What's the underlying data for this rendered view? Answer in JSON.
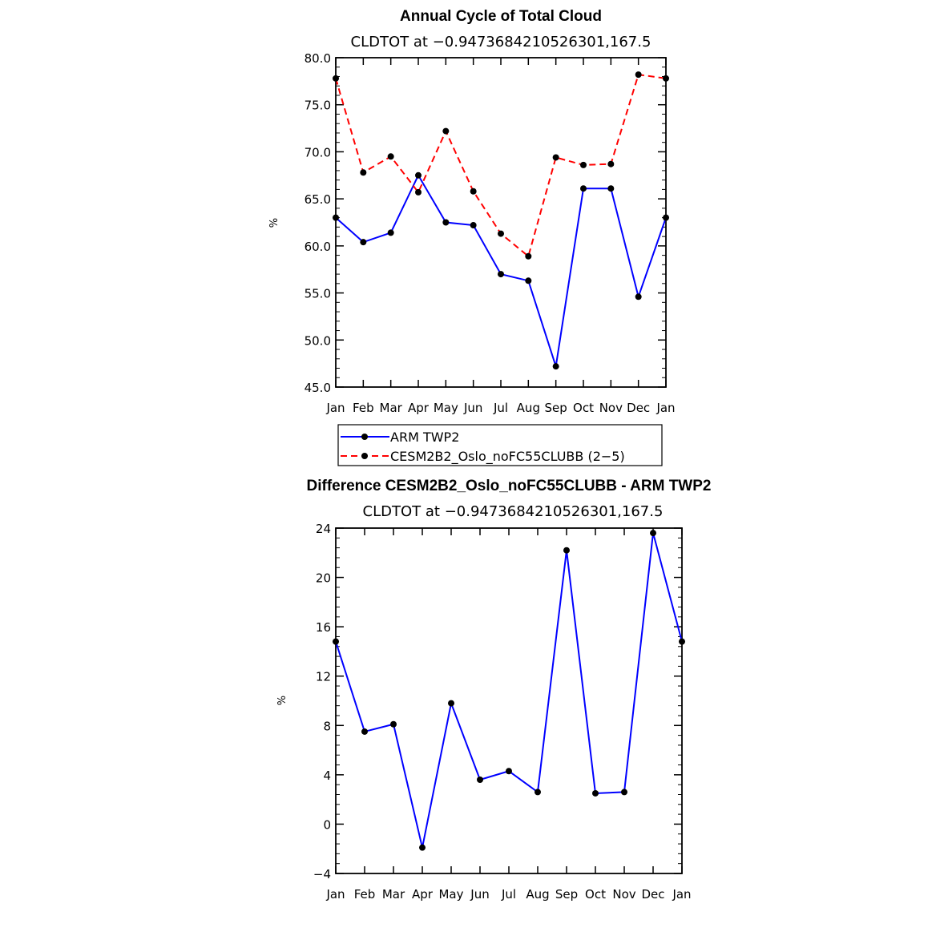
{
  "chart_data": [
    {
      "type": "line",
      "title": "Annual Cycle of Total Cloud",
      "subtitle": "CLDTOT at −0.9473684210526301,167.5",
      "xlabel": "",
      "ylabel": "%",
      "categories": [
        "Jan",
        "Feb",
        "Mar",
        "Apr",
        "May",
        "Jun",
        "Jul",
        "Aug",
        "Sep",
        "Oct",
        "Nov",
        "Dec",
        "Jan"
      ],
      "ylim": [
        45.0,
        80.0
      ],
      "yticks": [
        "45.0",
        "50.0",
        "55.0",
        "60.0",
        "65.0",
        "70.0",
        "75.0",
        "80.0"
      ],
      "series": [
        {
          "name": "ARM TWP2",
          "color": "#0000ff",
          "dash": "solid",
          "values": [
            63.0,
            60.4,
            61.4,
            67.5,
            62.5,
            62.2,
            57.0,
            56.3,
            47.2,
            66.1,
            66.1,
            54.6,
            63.0
          ]
        },
        {
          "name": "CESM2B2_Oslo_noFC55CLUBB (2−5)",
          "color": "#ff0000",
          "dash": "dashed",
          "values": [
            77.8,
            67.8,
            69.5,
            65.7,
            72.2,
            65.8,
            61.3,
            58.9,
            69.4,
            68.6,
            68.7,
            78.2,
            77.8
          ]
        }
      ],
      "legend": "bottom"
    },
    {
      "type": "line",
      "title": "Difference CESM2B2_Oslo_noFC55CLUBB - ARM TWP2",
      "subtitle": "CLDTOT at −0.9473684210526301,167.5",
      "xlabel": "",
      "ylabel": "%",
      "categories": [
        "Jan",
        "Feb",
        "Mar",
        "Apr",
        "May",
        "Jun",
        "Jul",
        "Aug",
        "Sep",
        "Oct",
        "Nov",
        "Dec",
        "Jan"
      ],
      "ylim": [
        -4,
        24
      ],
      "yticks": [
        "−4",
        "0",
        "4",
        "8",
        "12",
        "16",
        "20",
        "24"
      ],
      "series": [
        {
          "color": "#0000ff",
          "dash": "solid",
          "values": [
            14.8,
            7.5,
            8.1,
            -1.9,
            9.8,
            3.6,
            4.3,
            2.6,
            22.2,
            2.5,
            2.6,
            23.6,
            14.8
          ]
        }
      ]
    }
  ]
}
